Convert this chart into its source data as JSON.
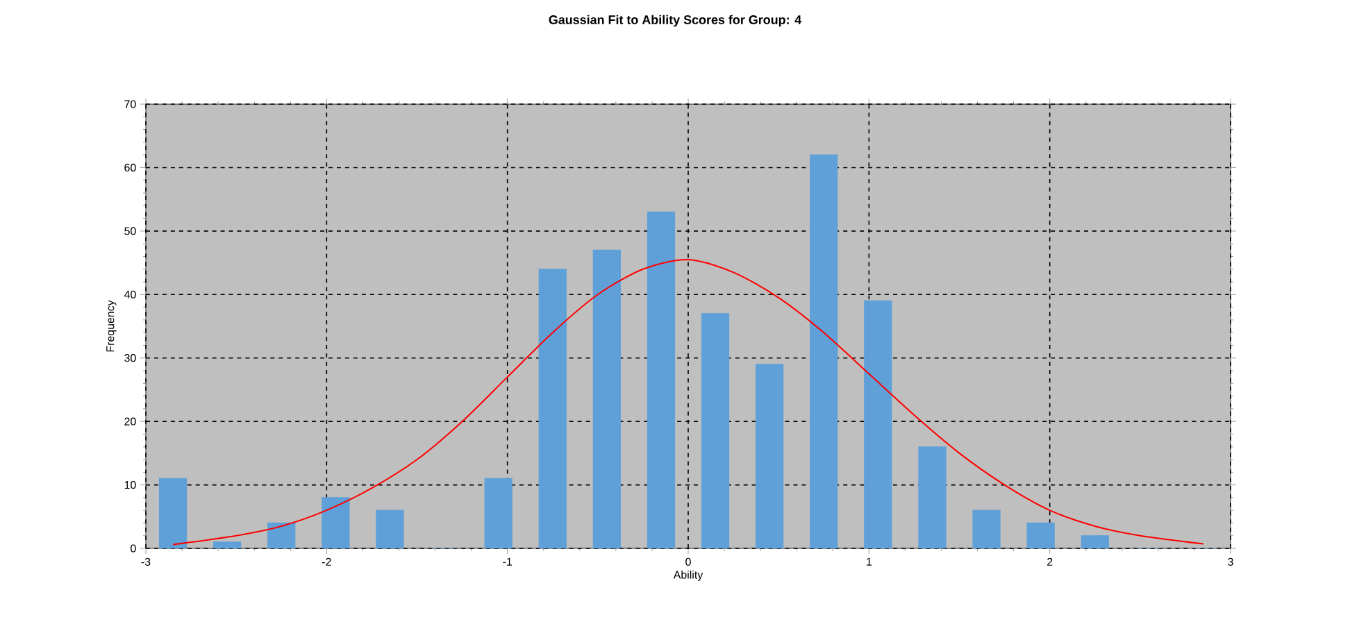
{
  "chart_data": {
    "type": "histogram",
    "title": "Gaussian Fit to Ability Scores for Group: 4",
    "xlabel": "Ability",
    "ylabel": "Frequency",
    "series": [
      {
        "color": "#5fa0d8",
        "bins": [
          -3,
          -2.7,
          -2.4,
          -2.1,
          -1.8,
          -1.5,
          -1.2,
          -0.9,
          -0.6,
          -0.3,
          0,
          0.3,
          0.6,
          0.9,
          1.2,
          1.5,
          1.8,
          2.1,
          2.4,
          2.7,
          3
        ],
        "values": [
          11,
          1,
          4,
          8,
          6,
          0,
          11,
          44,
          47,
          53,
          37,
          29,
          62,
          39,
          16,
          6,
          4,
          2,
          0,
          0
        ]
      },
      {
        "type": "line",
        "color": "#ff0000",
        "x": [
          -2.85,
          -2.5,
          -2.25,
          -2,
          -1.75,
          -1.5,
          -1.25,
          -1,
          -0.75,
          -0.5,
          -0.25,
          0,
          0.25,
          0.5,
          0.75,
          1,
          1.25,
          1.5,
          1.75,
          2,
          2.25,
          2.5,
          2.85
        ],
        "values": [
          0.6,
          2,
          3.5,
          6,
          9.5,
          14,
          20,
          27,
          34,
          40,
          44,
          45.5,
          43.5,
          39.5,
          34,
          27.5,
          21,
          15,
          10,
          6,
          3.5,
          2,
          0.7
        ]
      }
    ],
    "xlim": [
      -3,
      3
    ],
    "xticks": [
      -3,
      -2,
      -1,
      0,
      1,
      2,
      3
    ],
    "ylim": [
      0,
      70
    ],
    "yticks": [
      0,
      10,
      20,
      30,
      40,
      50,
      60,
      70
    ],
    "grid": true,
    "line_style": "solid",
    "marker": "none"
  }
}
